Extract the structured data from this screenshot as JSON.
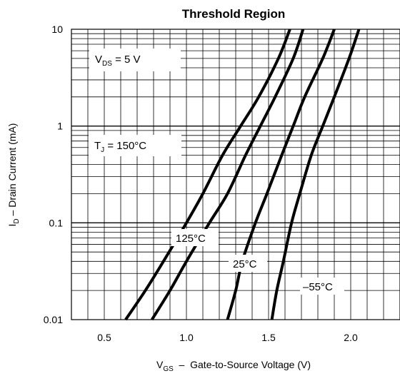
{
  "chart_data": {
    "type": "line",
    "title": "Threshold Region",
    "xlabel": {
      "main": "V",
      "sub": "GS",
      "rest": "  –  Gate-to-Source Voltage (V)"
    },
    "ylabel": {
      "main": "I",
      "sub": "D",
      "rest": " – Drain Current (mA)"
    },
    "x_scale": "linear",
    "y_scale": "log",
    "xlim": [
      0.3,
      2.3
    ],
    "ylim": [
      0.01,
      10
    ],
    "x_ticks": [
      0.5,
      1.0,
      1.5,
      2.0
    ],
    "x_tick_labels": [
      "0.5",
      "1.0",
      "1.5",
      "2.0"
    ],
    "y_ticks": [
      0.01,
      0.1,
      1,
      10
    ],
    "y_tick_labels": [
      "0.01",
      "0.1",
      "1",
      "10"
    ],
    "grid": true,
    "series": [
      {
        "name": "T_J = 150°C",
        "points": [
          [
            0.63,
            0.01
          ],
          [
            0.75,
            0.02
          ],
          [
            0.86,
            0.04
          ],
          [
            1.0,
            0.1
          ],
          [
            1.1,
            0.2
          ],
          [
            1.22,
            0.5
          ],
          [
            1.33,
            1.0
          ],
          [
            1.44,
            2.0
          ],
          [
            1.56,
            5.0
          ],
          [
            1.63,
            10.0
          ]
        ]
      },
      {
        "name": "125°C",
        "points": [
          [
            0.79,
            0.01
          ],
          [
            0.9,
            0.02
          ],
          [
            1.0,
            0.04
          ],
          [
            1.14,
            0.1
          ],
          [
            1.25,
            0.2
          ],
          [
            1.36,
            0.5
          ],
          [
            1.45,
            1.0
          ],
          [
            1.54,
            2.0
          ],
          [
            1.65,
            5.0
          ],
          [
            1.71,
            10.0
          ]
        ]
      },
      {
        "name": "25°C",
        "points": [
          [
            1.25,
            0.01
          ],
          [
            1.3,
            0.02
          ],
          [
            1.34,
            0.04
          ],
          [
            1.42,
            0.1
          ],
          [
            1.49,
            0.2
          ],
          [
            1.58,
            0.5
          ],
          [
            1.65,
            1.0
          ],
          [
            1.72,
            2.0
          ],
          [
            1.83,
            5.0
          ],
          [
            1.9,
            10.0
          ]
        ]
      },
      {
        "name": "−55°C",
        "points": [
          [
            1.52,
            0.01
          ],
          [
            1.55,
            0.02
          ],
          [
            1.59,
            0.04
          ],
          [
            1.64,
            0.1
          ],
          [
            1.69,
            0.2
          ],
          [
            1.76,
            0.5
          ],
          [
            1.83,
            1.0
          ],
          [
            1.9,
            2.0
          ],
          [
            1.99,
            5.0
          ],
          [
            2.05,
            10.0
          ]
        ]
      }
    ],
    "annotations": {
      "vds": {
        "main": "V",
        "sub": "DS",
        "rest": "  = 5 V"
      },
      "tj": {
        "main": "T",
        "sub": "J",
        "rest": " = 150°C"
      },
      "t125": "125°C",
      "t25": "25°C",
      "tm55": "–55°C"
    }
  }
}
